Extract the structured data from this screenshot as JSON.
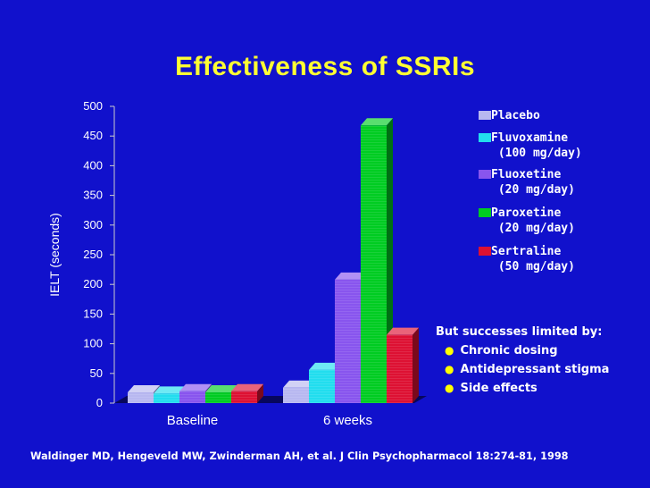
{
  "slide": {
    "title": "Effectiveness of SSRIs",
    "citation": "Waldinger MD, Hengeveld MW, Zwinderman AH, et al. J Clin Psychopharmacol 18:274-81, 1998",
    "notes_heading": "But successes limited by:",
    "notes": [
      "Chronic dosing",
      "Antidepressant stigma",
      "Side effects"
    ],
    "colors": {
      "background": "#1111cc",
      "title": "#ffff33",
      "bullet": "#ffff00"
    }
  },
  "chart_data": {
    "type": "bar",
    "title": "",
    "xlabel": "",
    "ylabel": "IELT (seconds)",
    "ylim": [
      0,
      500
    ],
    "yticks": [
      0,
      50,
      100,
      150,
      200,
      250,
      300,
      350,
      400,
      450,
      500
    ],
    "categories": [
      "Baseline",
      "6 weeks"
    ],
    "series": [
      {
        "name": "Placebo",
        "label_lines": [
          "Placebo"
        ],
        "color": "#b8b8f0",
        "values": [
          18,
          26
        ]
      },
      {
        "name": "Fluvoxamine (100 mg/day)",
        "label_lines": [
          "Fluvoxamine",
          "(100 mg/day)"
        ],
        "color": "#22ddee",
        "values": [
          16,
          56
        ]
      },
      {
        "name": "Fluoxetine (20 mg/day)",
        "label_lines": [
          "Fluoxetine",
          "(20 mg/day)"
        ],
        "color": "#8855ee",
        "values": [
          20,
          208
        ]
      },
      {
        "name": "Paroxetine (20 mg/day)",
        "label_lines": [
          "Paroxetine",
          "(20 mg/day)"
        ],
        "color": "#00cc22",
        "values": [
          18,
          468
        ]
      },
      {
        "name": "Sertraline (50 mg/day)",
        "label_lines": [
          "Sertraline",
          "(50 mg/day)"
        ],
        "color": "#dd1133",
        "values": [
          20,
          115
        ]
      }
    ]
  }
}
